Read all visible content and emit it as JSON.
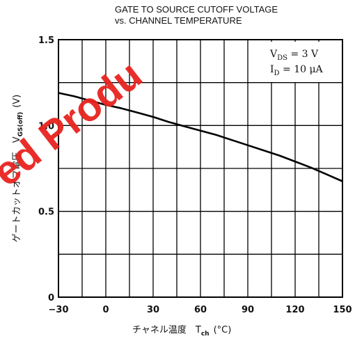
{
  "chart_data": {
    "type": "line",
    "title": "GATE TO SOURCE CUTOFF VOLTAGE",
    "subtitle": "vs. CHANNEL TEMPERATURE",
    "xlabel": "チャネル温度　T",
    "xlabel_sub": "ch",
    "xlabel_unit": "(°C)",
    "ylabel": "ゲートカットオフ電圧　V",
    "ylabel_sub": "GS(off)",
    "ylabel_unit": "(V)",
    "xlim": [
      -30,
      150
    ],
    "ylim": [
      0,
      1.5
    ],
    "x_ticks": [
      -30,
      0,
      30,
      60,
      90,
      120,
      150
    ],
    "x_tick_labels": [
      "−30",
      "0",
      "30",
      "60",
      "90",
      "120",
      "150"
    ],
    "y_ticks": [
      0,
      0.5,
      1.0,
      1.5
    ],
    "y_tick_labels": [
      "0",
      "0.5",
      "1.0",
      "1.5"
    ],
    "grid": true,
    "conditions": [
      {
        "main": "V",
        "sub": "DS",
        "rest": " = 3 V"
      },
      {
        "main": "I",
        "sub": "D",
        "rest": " = 10 μA"
      }
    ],
    "series": [
      {
        "x": [
          -30,
          -20,
          -10,
          0,
          10,
          20,
          30,
          40,
          50,
          60,
          70,
          80,
          90,
          100,
          110,
          120,
          130,
          140,
          150
        ],
        "y": [
          1.19,
          1.17,
          1.145,
          1.12,
          1.1,
          1.075,
          1.05,
          1.02,
          0.995,
          0.97,
          0.945,
          0.915,
          0.885,
          0.855,
          0.825,
          0.79,
          0.755,
          0.715,
          0.675
        ]
      }
    ]
  },
  "watermark": "ed Produ"
}
